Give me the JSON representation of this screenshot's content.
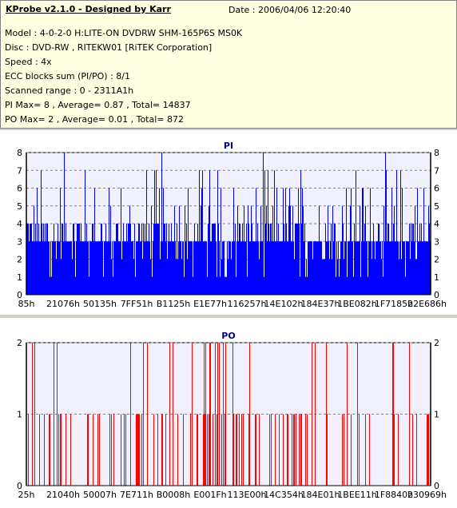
{
  "header": {
    "title": "KProbe v2.1.0 - Designed by Karr",
    "date": "Date : 2006/04/06 12:20:40",
    "lines": [
      "Model : 4-0-2-0 H:LITE-ON DVDRW SHM-165P6S MS0K",
      "Disc : DVD-RW , RITEKW01 [RiTEK Corporation]",
      "Speed : 4x",
      "ECC blocks sum (PI/PO) : 8/1",
      "Scanned range : 0 - 2311A1h",
      "PI Max= 8 , Average= 0.87 , Total= 14837",
      "PO Max= 2 , Average= 0.01 , Total= 872"
    ]
  },
  "chart_data": [
    {
      "type": "bar",
      "title": "PI",
      "color": "#0000ff",
      "ylim": [
        0,
        8
      ],
      "yticks": [
        "0",
        "1",
        "2",
        "3",
        "4",
        "5",
        "6",
        "7",
        "8"
      ],
      "xticks": [
        "85h",
        "21076h",
        "50135h",
        "7FF51h",
        "B1125h",
        "E1E77h",
        "116257h",
        "14E102h",
        "184E37h",
        "1BE082h",
        "1F7185h",
        "22E686h"
      ],
      "grid": true,
      "max": 8,
      "average": 0.87
    },
    {
      "type": "bar",
      "title": "PO",
      "color": "#ff0000",
      "ylim": [
        0,
        2
      ],
      "yticks": [
        "0",
        "1",
        "2"
      ],
      "xticks": [
        "25h",
        "21040h",
        "50007h",
        "7E711h",
        "B0008h",
        "E001Fh",
        "113E00h",
        "14C354h",
        "184E01h",
        "1BEE11h",
        "1F8840h",
        "230969h"
      ],
      "grid": true,
      "max": 2,
      "average": 0.01
    }
  ]
}
